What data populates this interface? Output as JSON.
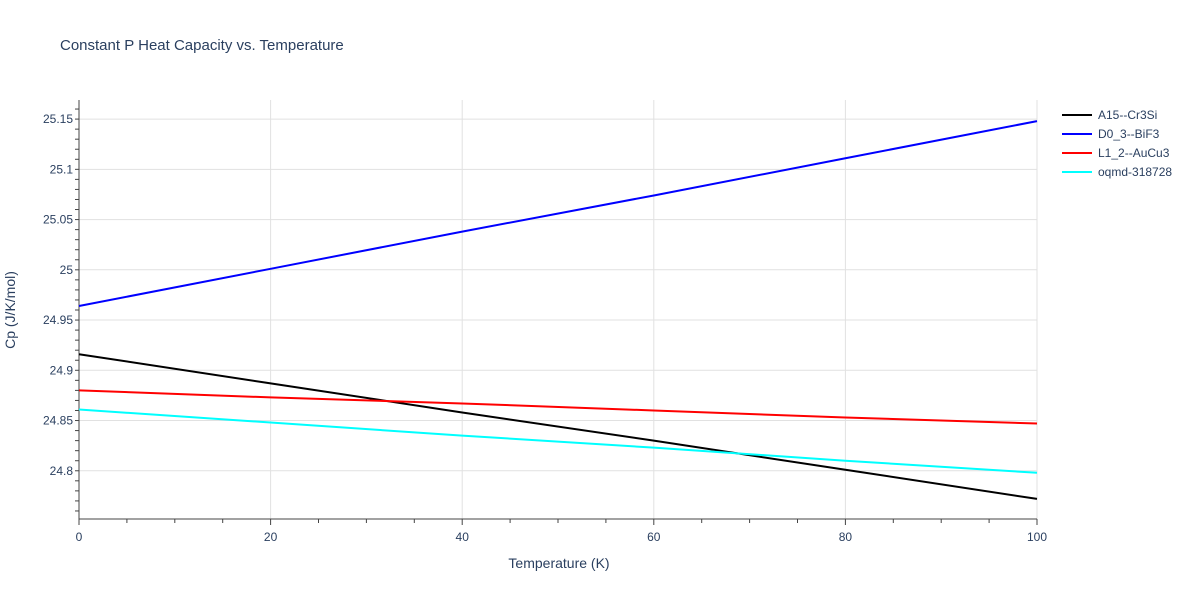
{
  "chart_data": {
    "type": "line",
    "title": "Constant P Heat Capacity vs. Temperature",
    "xlabel": "Temperature (K)",
    "ylabel": "Cp (J/K/mol)",
    "xlim": [
      0,
      100
    ],
    "ylim": [
      24.752,
      25.169
    ],
    "xticks": [
      0,
      20,
      40,
      60,
      80,
      100
    ],
    "xtick_labels": [
      "0",
      "20",
      "40",
      "60",
      "80",
      "100"
    ],
    "yticks": [
      24.8,
      24.85,
      24.9,
      24.95,
      25,
      25.05,
      25.1,
      25.15
    ],
    "ytick_labels": [
      "24.8",
      "24.85",
      "24.9",
      "24.95",
      "25",
      "25.05",
      "25.1",
      "25.15"
    ],
    "grid": true,
    "legend_position": "top-right",
    "x": [
      0,
      20,
      40,
      60,
      80,
      100
    ],
    "series": [
      {
        "name": "A15--Cr3Si",
        "color": "#000000",
        "values": [
          24.916,
          24.887,
          24.858,
          24.83,
          24.801,
          24.772
        ]
      },
      {
        "name": "D0_3--BiF3",
        "color": "#0000ff",
        "values": [
          24.964,
          25.001,
          25.038,
          25.074,
          25.111,
          25.148
        ]
      },
      {
        "name": "L1_2--AuCu3",
        "color": "#ff0000",
        "values": [
          24.88,
          24.873,
          24.867,
          24.86,
          24.853,
          24.847
        ]
      },
      {
        "name": "oqmd-318728",
        "color": "#00ffff",
        "values": [
          24.861,
          24.848,
          24.835,
          24.823,
          24.81,
          24.798
        ]
      }
    ]
  }
}
